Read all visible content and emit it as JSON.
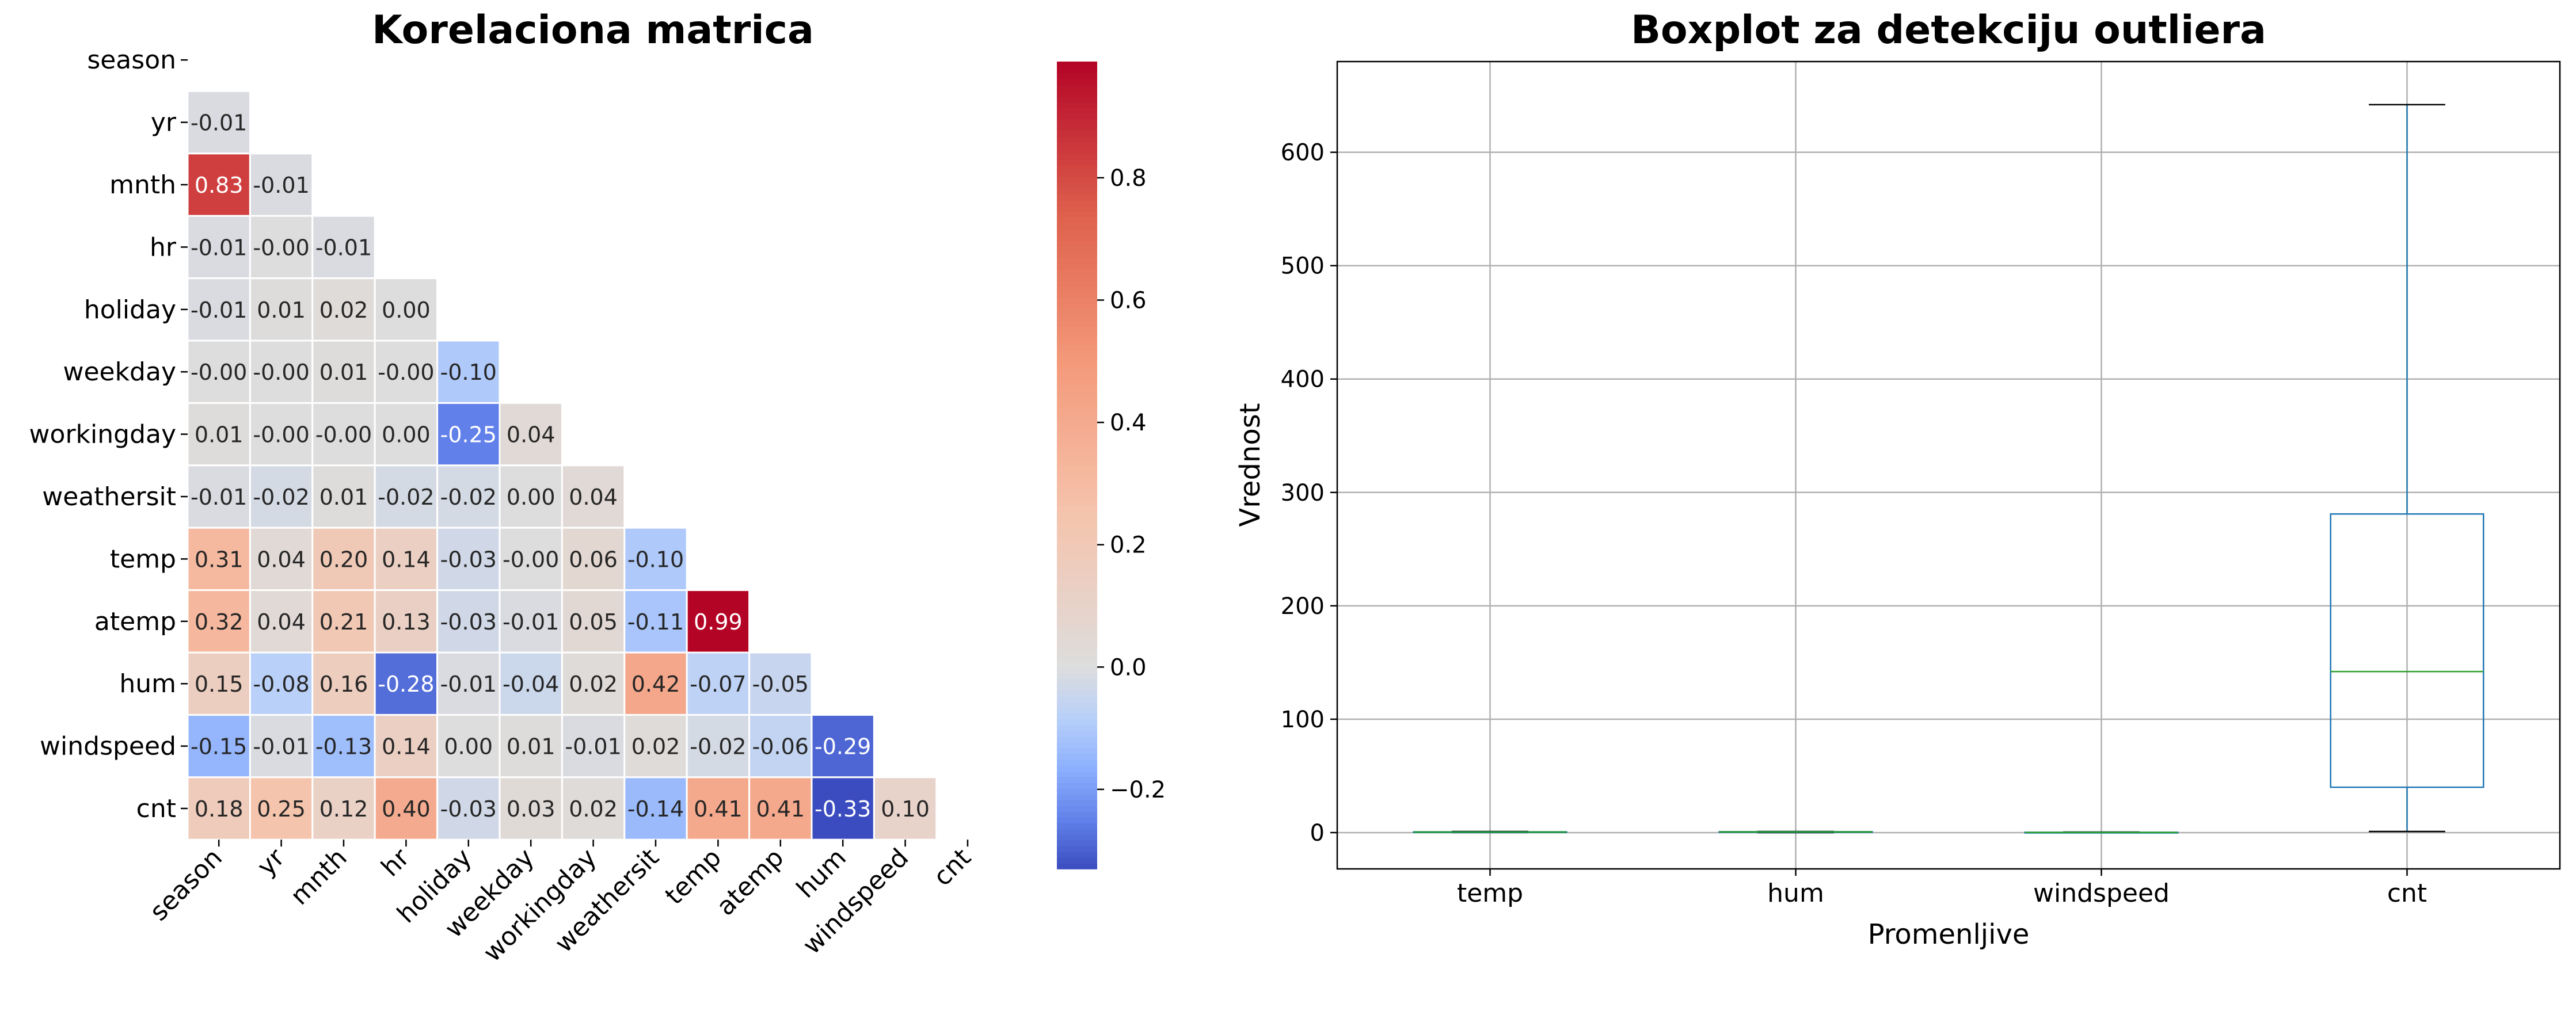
{
  "chart_data": [
    {
      "type": "heatmap",
      "title": "Korelaciona matrica",
      "variables": [
        "season",
        "yr",
        "mnth",
        "hr",
        "holiday",
        "weekday",
        "workingday",
        "weathersit",
        "temp",
        "atemp",
        "hum",
        "windspeed",
        "cnt"
      ],
      "mask": "upper-triangle-including-diagonal",
      "colormap": "coolwarm",
      "matrix_lower": [
        [],
        [
          -0.01
        ],
        [
          0.83,
          -0.01
        ],
        [
          -0.01,
          -0.0,
          -0.01
        ],
        [
          -0.01,
          0.01,
          0.02,
          0.0
        ],
        [
          -0.0,
          -0.0,
          0.01,
          -0.0,
          -0.1
        ],
        [
          0.01,
          -0.0,
          -0.0,
          0.0,
          -0.25,
          0.04
        ],
        [
          -0.01,
          -0.02,
          0.01,
          -0.02,
          -0.02,
          0.0,
          0.04
        ],
        [
          0.31,
          0.04,
          0.2,
          0.14,
          -0.03,
          -0.0,
          0.06,
          -0.1
        ],
        [
          0.32,
          0.04,
          0.21,
          0.13,
          -0.03,
          -0.01,
          0.05,
          -0.11,
          0.99
        ],
        [
          0.15,
          -0.08,
          0.16,
          -0.28,
          -0.01,
          -0.04,
          0.02,
          0.42,
          -0.07,
          -0.05
        ],
        [
          -0.15,
          -0.01,
          -0.13,
          0.14,
          0.0,
          0.01,
          -0.01,
          0.02,
          -0.02,
          -0.06,
          -0.29
        ],
        [
          0.18,
          0.25,
          0.12,
          0.4,
          -0.03,
          0.03,
          0.02,
          -0.14,
          0.41,
          0.41,
          -0.33,
          0.1
        ]
      ],
      "cell_labels": [
        [],
        [
          "-0.01"
        ],
        [
          "0.83",
          "-0.01"
        ],
        [
          "-0.01",
          "-0.00",
          "-0.01"
        ],
        [
          "-0.01",
          "0.01",
          "0.02",
          "0.00"
        ],
        [
          "-0.00",
          "-0.00",
          "0.01",
          "-0.00",
          "-0.10"
        ],
        [
          "0.01",
          "-0.00",
          "-0.00",
          "0.00",
          "-0.25",
          "0.04"
        ],
        [
          "-0.01",
          "-0.02",
          "0.01",
          "-0.02",
          "-0.02",
          "0.00",
          "0.04"
        ],
        [
          "0.31",
          "0.04",
          "0.20",
          "0.14",
          "-0.03",
          "-0.00",
          "0.06",
          "-0.10"
        ],
        [
          "0.32",
          "0.04",
          "0.21",
          "0.13",
          "-0.03",
          "-0.01",
          "0.05",
          "-0.11",
          "0.99"
        ],
        [
          "0.15",
          "-0.08",
          "0.16",
          "-0.28",
          "-0.01",
          "-0.04",
          "0.02",
          "0.42",
          "-0.07",
          "-0.05"
        ],
        [
          "-0.15",
          "-0.01",
          "-0.13",
          "0.14",
          "0.00",
          "0.01",
          "-0.01",
          "0.02",
          "-0.02",
          "-0.06",
          "-0.29"
        ],
        [
          "0.18",
          "0.25",
          "0.12",
          "0.40",
          "-0.03",
          "0.03",
          "0.02",
          "-0.14",
          "0.41",
          "0.41",
          "-0.33",
          "0.10"
        ]
      ],
      "colorbar": {
        "vmin": -0.33,
        "vmax": 0.99,
        "ticks": [
          -0.2,
          0.0,
          0.2,
          0.4,
          0.6,
          0.8
        ],
        "tick_labels": [
          "−0.2",
          "0.0",
          "0.2",
          "0.4",
          "0.6",
          "0.8"
        ]
      }
    },
    {
      "type": "boxplot",
      "title": "Boxplot za detekciju outliera",
      "xlabel": "Promenljive",
      "ylabel": "Vrednost",
      "categories": [
        "temp",
        "hum",
        "windspeed",
        "cnt"
      ],
      "boxes": [
        {
          "name": "temp",
          "whisker_low": 0.02,
          "q1": 0.34,
          "median": 0.5,
          "q3": 0.66,
          "whisker_high": 1.0
        },
        {
          "name": "hum",
          "whisker_low": 0.0,
          "q1": 0.48,
          "median": 0.63,
          "q3": 0.78,
          "whisker_high": 1.0
        },
        {
          "name": "windspeed",
          "whisker_low": 0.0,
          "q1": 0.1,
          "median": 0.19,
          "q3": 0.25,
          "whisker_high": 0.47
        },
        {
          "name": "cnt",
          "whisker_low": 1,
          "q1": 40,
          "median": 142,
          "q3": 281,
          "whisker_high": 642
        }
      ],
      "ylim": [
        -32,
        680
      ],
      "yticks": [
        0,
        100,
        200,
        300,
        400,
        500,
        600
      ],
      "ytick_labels": [
        "0",
        "100",
        "200",
        "300",
        "400",
        "500",
        "600"
      ],
      "grid": true,
      "colors": {
        "box": "#1f77b4",
        "median": "#2ca02c",
        "whisker_cap": "#000000"
      }
    }
  ]
}
